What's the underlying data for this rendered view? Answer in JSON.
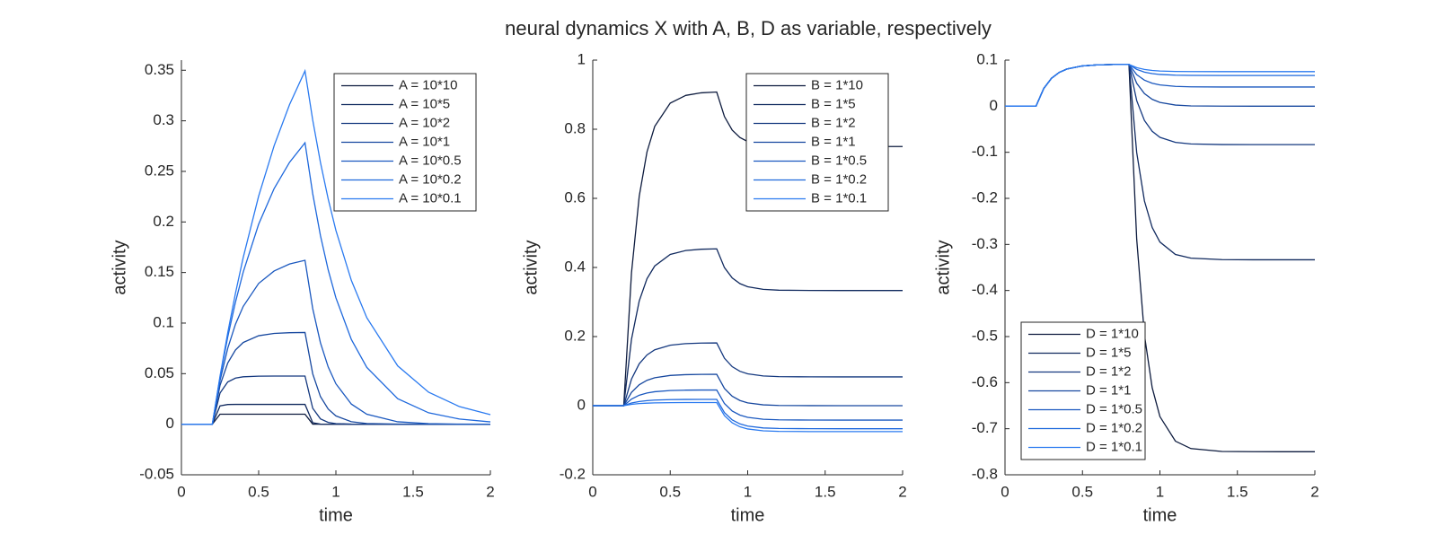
{
  "title": "neural dynamics X with A, B, D as variable, respectively",
  "chart_data": [
    {
      "type": "line",
      "xlabel": "time",
      "ylabel": "activity",
      "xlim": [
        0,
        2
      ],
      "ylim": [
        -0.05,
        0.36
      ],
      "xticks": [
        0,
        0.5,
        1,
        1.5,
        2
      ],
      "yticks": [
        -0.05,
        0,
        0.05,
        0.1,
        0.15,
        0.2,
        0.25,
        0.3,
        0.35
      ],
      "legend": "northeast",
      "x": [
        0,
        0.2,
        0.25,
        0.3,
        0.35,
        0.4,
        0.5,
        0.6,
        0.7,
        0.8,
        0.85,
        0.9,
        0.95,
        1,
        1.1,
        1.2,
        1.4,
        1.6,
        1.8,
        2
      ],
      "series": [
        {
          "name": "A = 10*10",
          "color": "#0d1b3e",
          "values": [
            0,
            0,
            0.0099,
            0.0099,
            0.0099,
            0.0099,
            0.0099,
            0.0099,
            0.0099,
            0.0099,
            0.0001,
            0,
            0,
            0,
            0,
            0,
            0,
            0,
            0,
            0
          ]
        },
        {
          "name": "A = 10*5",
          "color": "#10295e",
          "values": [
            0,
            0,
            0.0181,
            0.0195,
            0.0196,
            0.0196,
            0.0196,
            0.0196,
            0.0196,
            0.0196,
            0.0015,
            0.0001,
            0,
            0,
            0,
            0,
            0,
            0,
            0,
            0
          ]
        },
        {
          "name": "A = 10*2",
          "color": "#14387f",
          "values": [
            0,
            0,
            0.0309,
            0.0418,
            0.0456,
            0.0469,
            0.0475,
            0.0476,
            0.0476,
            0.0476,
            0.0158,
            0.0053,
            0.0018,
            0.0006,
            0.0001,
            0,
            0,
            0,
            0,
            0
          ]
        },
        {
          "name": "A = 10*1",
          "color": "#17489f",
          "values": [
            0,
            0,
            0.0385,
            0.0606,
            0.0734,
            0.0808,
            0.0875,
            0.0898,
            0.0905,
            0.0907,
            0.0498,
            0.0273,
            0.015,
            0.0082,
            0.0025,
            0.0007,
            0.0001,
            0,
            0,
            0
          ]
        },
        {
          "name": "A = 10*0.5",
          "color": "#1a58bf",
          "values": [
            0,
            0,
            0.0432,
            0.0752,
            0.0989,
            0.1165,
            0.1392,
            0.1515,
            0.1584,
            0.1621,
            0.1143,
            0.0805,
            0.0567,
            0.04,
            0.0199,
            0.0099,
            0.0024,
            0.0006,
            0.0001,
            0
          ]
        },
        {
          "name": "A = 10*0.2",
          "color": "#1e68dc",
          "values": [
            0,
            0,
            0.0464,
            0.0864,
            0.1208,
            0.1504,
            0.1978,
            0.233,
            0.259,
            0.2783,
            0.2279,
            0.1865,
            0.1527,
            0.125,
            0.0838,
            0.0562,
            0.0252,
            0.0113,
            0.0051,
            0.0023
          ]
        },
        {
          "name": "A = 10*0.1",
          "color": "#2a7af0",
          "values": [
            0,
            0,
            0.0476,
            0.0906,
            0.1296,
            0.1648,
            0.2256,
            0.2753,
            0.3161,
            0.3494,
            0.3007,
            0.2588,
            0.2228,
            0.1917,
            0.1422,
            0.1053,
            0.0577,
            0.0317,
            0.0174,
            0.0095
          ]
        }
      ]
    },
    {
      "type": "line",
      "xlabel": "time",
      "ylabel": "activity",
      "xlim": [
        0,
        2
      ],
      "ylim": [
        -0.2,
        1
      ],
      "xticks": [
        0,
        0.5,
        1,
        1.5,
        2
      ],
      "yticks": [
        -0.2,
        0,
        0.2,
        0.4,
        0.6,
        0.8,
        1
      ],
      "legend": "northeast",
      "x": [
        0,
        0.2,
        0.25,
        0.3,
        0.35,
        0.4,
        0.5,
        0.6,
        0.7,
        0.8,
        0.85,
        0.9,
        0.95,
        1,
        1.1,
        1.2,
        1.4,
        1.6,
        1.8,
        2
      ],
      "series": [
        {
          "name": "B = 1*10",
          "color": "#0d1b3e",
          "values": [
            0,
            0,
            0.3846,
            0.6065,
            0.7345,
            0.8084,
            0.8755,
            0.8979,
            0.9054,
            0.9078,
            0.8366,
            0.7975,
            0.7761,
            0.7643,
            0.7543,
            0.7513,
            0.7501,
            0.75,
            0.75,
            0.75
          ]
        },
        {
          "name": "B = 1*5",
          "color": "#10295e",
          "values": [
            0,
            0,
            0.1923,
            0.3032,
            0.3673,
            0.4042,
            0.4378,
            0.449,
            0.4527,
            0.4539,
            0.3995,
            0.3696,
            0.3532,
            0.3442,
            0.3366,
            0.3343,
            0.3334,
            0.3333,
            0.3333,
            0.3333
          ]
        },
        {
          "name": "B = 1*2",
          "color": "#14387f",
          "values": [
            0,
            0,
            0.0769,
            0.1213,
            0.1469,
            0.1617,
            0.1751,
            0.1796,
            0.1811,
            0.1816,
            0.1372,
            0.1129,
            0.0995,
            0.0922,
            0.086,
            0.0841,
            0.0834,
            0.0833,
            0.0833,
            0.0833
          ]
        },
        {
          "name": "B = 1*1",
          "color": "#17489f",
          "values": [
            0,
            0,
            0.0385,
            0.0606,
            0.0734,
            0.0808,
            0.0875,
            0.0898,
            0.0905,
            0.0907,
            0.0498,
            0.0273,
            0.015,
            0.0082,
            0.0025,
            0.0007,
            0.0001,
            0,
            0,
            0
          ]
        },
        {
          "name": "B = 1*0.5",
          "color": "#1a58bf",
          "values": [
            0,
            0,
            0.0192,
            0.0303,
            0.0367,
            0.0404,
            0.0438,
            0.0449,
            0.0453,
            0.0454,
            0.0061,
            -0.0155,
            -0.0273,
            -0.0338,
            -0.0393,
            -0.041,
            -0.0416,
            -0.0417,
            -0.0417,
            -0.0417
          ]
        },
        {
          "name": "B = 1*0.2",
          "color": "#1e68dc",
          "values": [
            0,
            0,
            0.0077,
            0.0121,
            0.0147,
            0.0162,
            0.0175,
            0.018,
            0.0181,
            0.0182,
            -0.0201,
            -0.0411,
            -0.0527,
            -0.059,
            -0.0644,
            -0.066,
            -0.0666,
            -0.0667,
            -0.0667,
            -0.0667
          ]
        },
        {
          "name": "B = 1*0.1",
          "color": "#2a7af0",
          "values": [
            0,
            0,
            0.0038,
            0.0061,
            0.0073,
            0.0081,
            0.0088,
            0.009,
            0.0091,
            0.0091,
            -0.0288,
            -0.0497,
            -0.0611,
            -0.0674,
            -0.0727,
            -0.0743,
            -0.0749,
            -0.075,
            -0.075,
            -0.075
          ]
        }
      ]
    },
    {
      "type": "line",
      "xlabel": "time",
      "ylabel": "activity",
      "xlim": [
        0,
        2
      ],
      "ylim": [
        -0.8,
        0.1
      ],
      "xticks": [
        0,
        0.5,
        1,
        1.5,
        2
      ],
      "yticks": [
        -0.8,
        -0.7,
        -0.6,
        -0.5,
        -0.4,
        -0.3,
        -0.2,
        -0.1,
        0,
        0.1
      ],
      "legend": "southwest",
      "x": [
        0,
        0.2,
        0.25,
        0.3,
        0.35,
        0.4,
        0.5,
        0.6,
        0.7,
        0.8,
        0.85,
        0.9,
        0.95,
        1,
        1.1,
        1.2,
        1.4,
        1.6,
        1.8,
        2
      ],
      "series": [
        {
          "name": "D = 1*10",
          "color": "#0d1b3e",
          "values": [
            0,
            0,
            0.0385,
            0.0606,
            0.0734,
            0.0808,
            0.0875,
            0.0898,
            0.0905,
            0.0907,
            -0.2886,
            -0.4968,
            -0.611,
            -0.6737,
            -0.727,
            -0.7431,
            -0.7494,
            -0.7499,
            -0.75,
            -0.75
          ]
        },
        {
          "name": "D = 1*5",
          "color": "#10295e",
          "values": [
            0,
            0,
            0.0385,
            0.0606,
            0.0734,
            0.0808,
            0.0875,
            0.0898,
            0.0905,
            0.0907,
            -0.1006,
            -0.2056,
            -0.2632,
            -0.2948,
            -0.3217,
            -0.3298,
            -0.333,
            -0.3333,
            -0.3333,
            -0.3333
          ]
        },
        {
          "name": "D = 1*2",
          "color": "#14387f",
          "values": [
            0,
            0,
            0.0385,
            0.0606,
            0.0734,
            0.0808,
            0.0875,
            0.0898,
            0.0905,
            0.0907,
            0.0122,
            -0.0309,
            -0.0545,
            -0.0675,
            -0.0785,
            -0.0819,
            -0.0832,
            -0.0833,
            -0.0833,
            -0.0833
          ]
        },
        {
          "name": "D = 1*1",
          "color": "#17489f",
          "values": [
            0,
            0,
            0.0385,
            0.0606,
            0.0734,
            0.0808,
            0.0875,
            0.0898,
            0.0905,
            0.0907,
            0.0498,
            0.0273,
            0.015,
            0.0082,
            0.0025,
            0.0007,
            0.0001,
            0,
            0,
            0
          ]
        },
        {
          "name": "D = 1*0.5",
          "color": "#1a58bf",
          "values": [
            0,
            0,
            0.0385,
            0.0606,
            0.0734,
            0.0808,
            0.0875,
            0.0898,
            0.0905,
            0.0907,
            0.0686,
            0.0565,
            0.0498,
            0.0462,
            0.043,
            0.0421,
            0.0417,
            0.0417,
            0.0417,
            0.0417
          ]
        },
        {
          "name": "D = 1*0.2",
          "color": "#1e68dc",
          "values": [
            0,
            0,
            0.0385,
            0.0606,
            0.0734,
            0.0808,
            0.0875,
            0.0898,
            0.0905,
            0.0907,
            0.0799,
            0.074,
            0.0707,
            0.0689,
            0.0674,
            0.0669,
            0.0667,
            0.0667,
            0.0667,
            0.0667
          ]
        },
        {
          "name": "D = 1*0.1",
          "color": "#2a7af0",
          "values": [
            0,
            0,
            0.0385,
            0.0606,
            0.0734,
            0.0808,
            0.0875,
            0.0898,
            0.0905,
            0.0907,
            0.0837,
            0.0798,
            0.0776,
            0.0764,
            0.0754,
            0.0751,
            0.075,
            0.075,
            0.075,
            0.075
          ]
        }
      ]
    }
  ]
}
